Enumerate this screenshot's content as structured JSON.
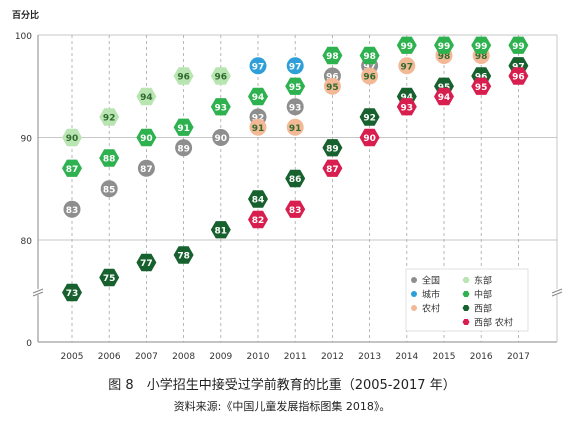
{
  "chart_data": {
    "type": "scatter",
    "ylabel": "百分比",
    "ylim": [
      0,
      100
    ],
    "y_axis_break": true,
    "y_ticks": [
      "0",
      "80",
      "90",
      "100"
    ],
    "x": [
      "2005",
      "2006",
      "2007",
      "2008",
      "2009",
      "2010",
      "2011",
      "2012",
      "2013",
      "2014",
      "2015",
      "2016",
      "2017"
    ],
    "grid": "vertical dashed, horizontal at 80/90/100",
    "legend_placement": "bottom-right",
    "series": [
      {
        "name": "全国",
        "color": "#8e8e8e",
        "marker": "circle",
        "values": [
          83,
          85,
          87,
          89,
          90,
          92,
          93,
          96,
          97,
          null,
          null,
          null,
          null
        ]
      },
      {
        "name": "城市",
        "color": "#2e9fd9",
        "marker": "circle",
        "values": [
          null,
          null,
          null,
          null,
          null,
          97,
          97,
          null,
          98,
          null,
          null,
          null,
          null
        ]
      },
      {
        "name": "农村",
        "color": "#f3b896",
        "marker": "circle",
        "values": [
          null,
          null,
          null,
          null,
          null,
          91,
          91,
          95,
          96,
          97,
          98,
          98,
          99
        ]
      },
      {
        "name": "东部",
        "color": "#b8e5b1",
        "marker": "hexagon",
        "values": [
          90,
          92,
          94,
          96,
          96,
          null,
          null,
          null,
          null,
          null,
          null,
          null,
          null
        ]
      },
      {
        "name": "中部",
        "color": "#2eb14f",
        "marker": "hexagon",
        "values": [
          87,
          88,
          90,
          91,
          93,
          94,
          95,
          98,
          98,
          99,
          99,
          99,
          99
        ]
      },
      {
        "name": "西部",
        "color": "#17612e",
        "marker": "hexagon",
        "values": [
          73,
          75,
          77,
          78,
          81,
          84,
          86,
          89,
          92,
          94,
          95,
          96,
          97
        ]
      },
      {
        "name": "西部 农村",
        "color": "#d81e4e",
        "marker": "hexagon",
        "values": [
          null,
          null,
          null,
          null,
          null,
          82,
          83,
          87,
          90,
          93,
          94,
          95,
          96
        ]
      }
    ]
  },
  "caption": {
    "title": "图 8　小学招生中接受过学前教育的比重（2005-2017 年）",
    "source": "资料来源:《中国儿童发展指标图集 2018》。"
  }
}
